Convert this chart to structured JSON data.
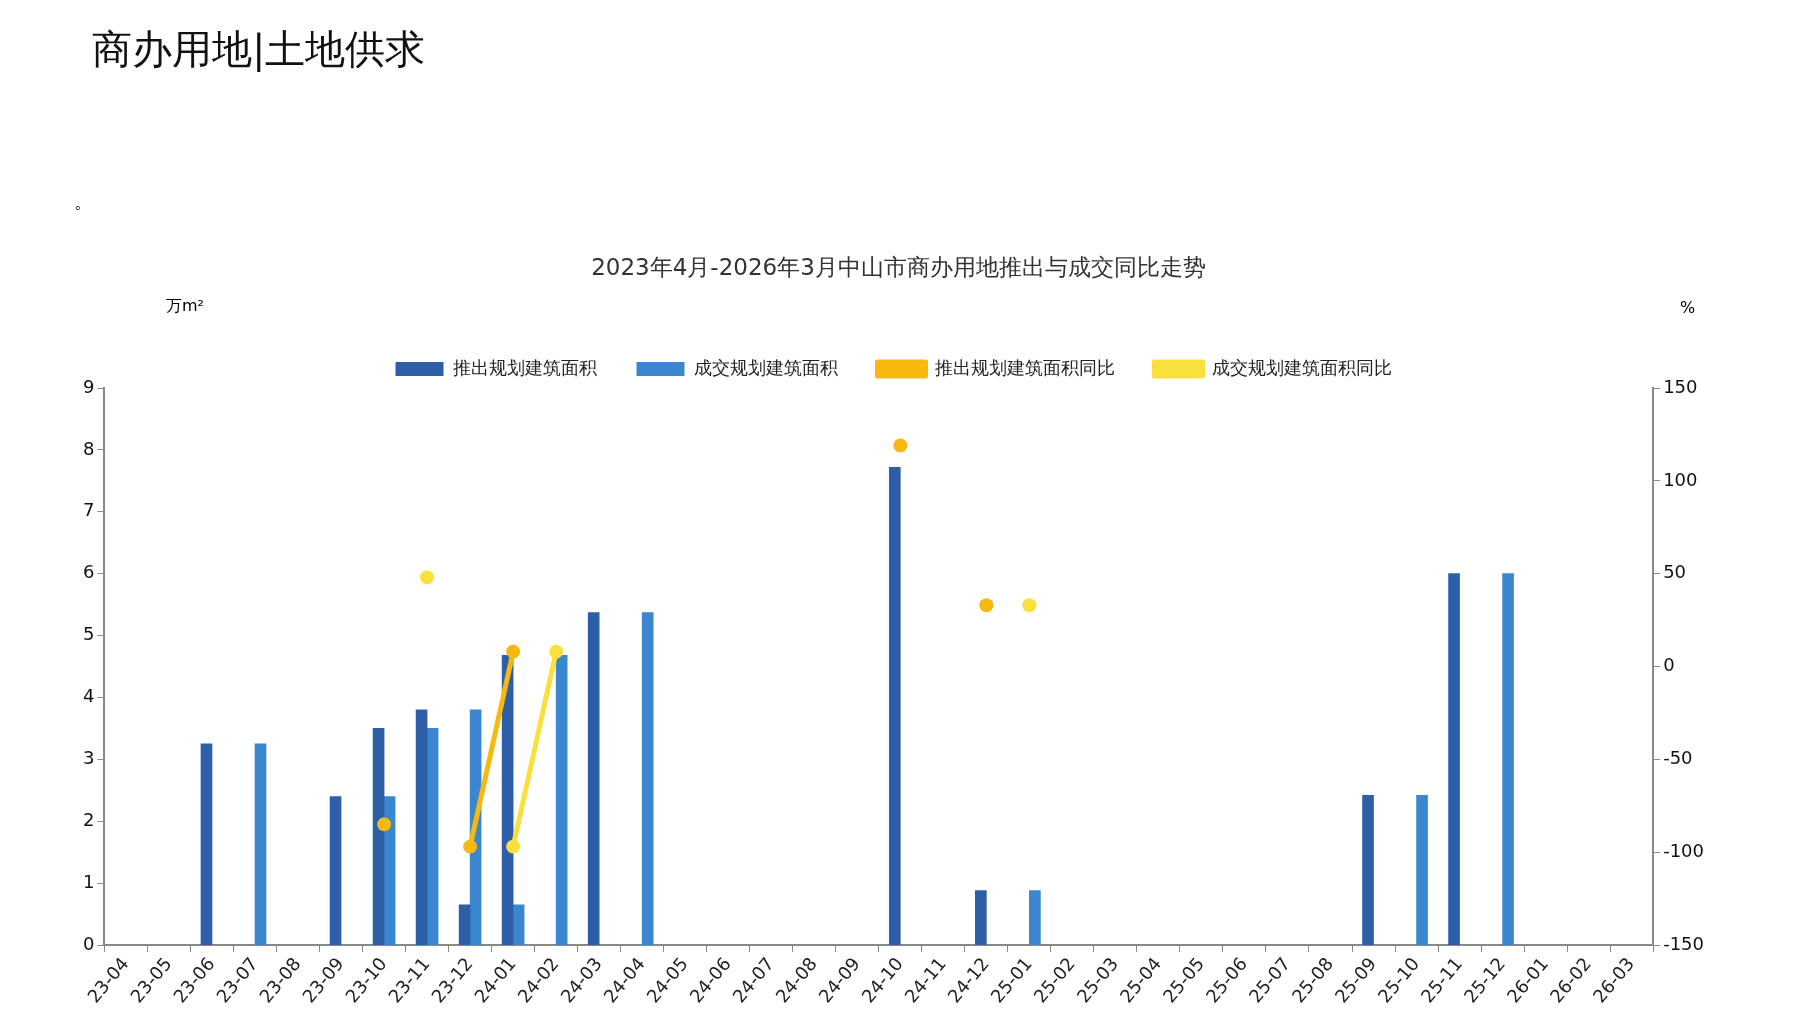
{
  "chart_data": {
    "type": "bar",
    "title": "商办用地|土地供求",
    "subtitle": "2023年4月-2026年3月中山市商办用地推出与成交同比走势",
    "ylabel": "万m²",
    "y2label": "%",
    "annotations": [
      "。"
    ],
    "categories": [
      "23-04",
      "23-05",
      "23-06",
      "23-07",
      "23-08",
      "23-09",
      "23-10",
      "23-11",
      "23-12",
      "24-01",
      "24-02",
      "24-03",
      "24-04",
      "24-05",
      "24-06",
      "24-07",
      "24-08",
      "24-09",
      "24-10",
      "24-11",
      "24-12",
      "25-01",
      "25-02",
      "25-03",
      "25-04",
      "25-05",
      "25-06",
      "25-07",
      "25-08",
      "25-09",
      "25-10",
      "25-11",
      "25-12",
      "26-01",
      "26-02",
      "26-03"
    ],
    "series": [
      {
        "name": "推出规划建筑面积",
        "color": "#2e5ea8",
        "values": [
          null,
          null,
          3.25,
          null,
          null,
          2.4,
          3.5,
          3.8,
          0.65,
          4.68,
          null,
          5.37,
          null,
          null,
          null,
          null,
          null,
          null,
          7.72,
          null,
          0.88,
          null,
          null,
          null,
          null,
          null,
          null,
          null,
          null,
          2.42,
          null,
          6.0,
          null,
          null,
          null,
          null
        ]
      },
      {
        "name": "成交规划建筑面积",
        "color": "#3b87cf",
        "values": [
          null,
          null,
          null,
          3.25,
          null,
          null,
          2.4,
          3.5,
          3.8,
          0.65,
          4.68,
          null,
          5.37,
          null,
          null,
          null,
          null,
          null,
          null,
          null,
          null,
          0.88,
          null,
          null,
          null,
          null,
          null,
          null,
          null,
          null,
          2.42,
          null,
          6.0,
          null,
          null,
          null
        ]
      },
      {
        "name": "推出规划建筑面积同比",
        "type": "line",
        "axis": "y2",
        "color": "#f5b90f",
        "values": [
          null,
          null,
          null,
          null,
          null,
          null,
          -85,
          null,
          -97,
          8,
          null,
          null,
          null,
          null,
          null,
          null,
          null,
          null,
          119,
          null,
          33,
          null,
          null,
          null,
          null,
          null,
          null,
          null,
          null,
          null,
          null,
          null,
          null,
          null,
          null,
          null
        ]
      },
      {
        "name": "成交规划建筑面积同比",
        "type": "line",
        "axis": "y2",
        "color": "#f9e03c",
        "values": [
          null,
          null,
          null,
          null,
          null,
          null,
          null,
          48,
          null,
          -97,
          8,
          null,
          null,
          null,
          null,
          null,
          null,
          null,
          null,
          null,
          null,
          33,
          null,
          null,
          null,
          null,
          null,
          null,
          null,
          null,
          null,
          null,
          null,
          null,
          null,
          null
        ]
      }
    ],
    "ylim": [
      0,
      9
    ],
    "yticks": [
      0,
      1,
      2,
      3,
      4,
      5,
      6,
      7,
      8,
      9
    ],
    "y2lim": [
      -150,
      150
    ],
    "y2ticks": [
      -150,
      -100,
      -50,
      0,
      50,
      100,
      150
    ],
    "grid": false,
    "legend": "top",
    "marker": "circle"
  }
}
